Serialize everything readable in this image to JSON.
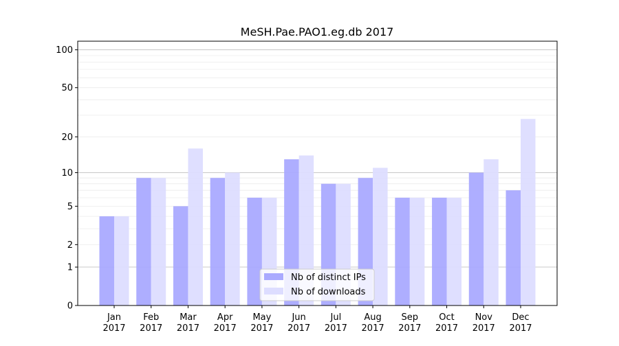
{
  "chart_data": {
    "type": "bar",
    "title": "MeSH.Pae.PAO1.eg.db 2017",
    "xlabel": "",
    "ylabel": "",
    "yscale": "log(1+y)",
    "ylim": [
      0,
      117
    ],
    "grid": true,
    "legend_position": "bottom-center",
    "categories": [
      [
        "Jan",
        "2017"
      ],
      [
        "Feb",
        "2017"
      ],
      [
        "Mar",
        "2017"
      ],
      [
        "Apr",
        "2017"
      ],
      [
        "May",
        "2017"
      ],
      [
        "Jun",
        "2017"
      ],
      [
        "Jul",
        "2017"
      ],
      [
        "Aug",
        "2017"
      ],
      [
        "Sep",
        "2017"
      ],
      [
        "Oct",
        "2017"
      ],
      [
        "Nov",
        "2017"
      ],
      [
        "Dec",
        "2017"
      ]
    ],
    "yticks": [
      {
        "value": 0,
        "label": "0"
      },
      {
        "value": 1,
        "label": "1"
      },
      {
        "value": 2,
        "label": "2"
      },
      {
        "value": 5,
        "label": "5"
      },
      {
        "value": 10,
        "label": "10"
      },
      {
        "value": 20,
        "label": "20"
      },
      {
        "value": 50,
        "label": "50"
      },
      {
        "value": 100,
        "label": "100"
      }
    ],
    "series": [
      {
        "name": "Nb of distinct IPs",
        "color": "#aaaaff",
        "values": [
          4,
          9,
          5,
          9,
          6,
          13,
          8,
          9,
          6,
          6,
          10,
          7
        ]
      },
      {
        "name": "Nb of downloads",
        "color": "#ddddff",
        "values": [
          4,
          9,
          16,
          10,
          6,
          14,
          8,
          11,
          6,
          6,
          13,
          28
        ]
      }
    ]
  }
}
